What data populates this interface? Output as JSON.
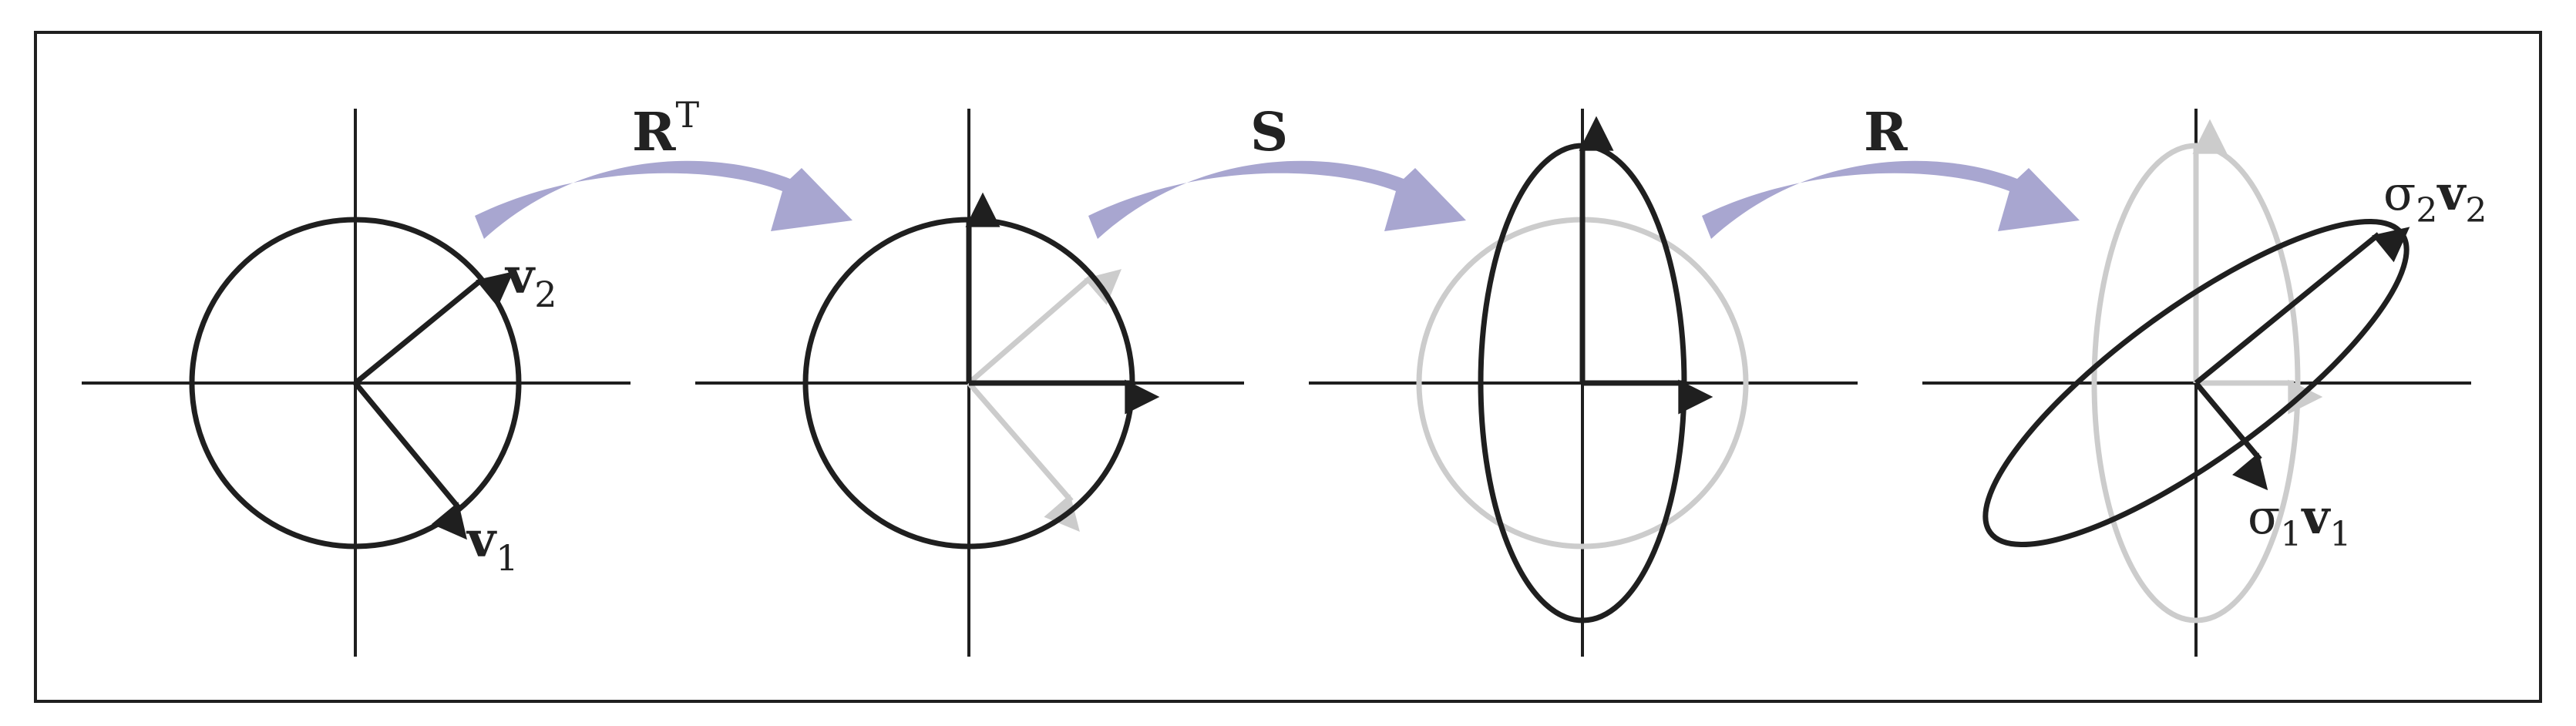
{
  "colors": {
    "ink": "#1f1f1f",
    "faded": "#c9c9c9",
    "arrow_fill": "#a8a6d0",
    "background": "#ffffff"
  },
  "labels": {
    "v1_main": "v",
    "v1_sub": "1",
    "v2_main": "v",
    "v2_sub": "2",
    "transform_rt_main": "R",
    "transform_rt_sup": "T",
    "transform_s": "S",
    "transform_r": "R",
    "sigma1_main": "σ",
    "sigma1_sub": "1",
    "sigma1_vec": "v",
    "sigma1_vec_sub": "1",
    "sigma2_main": "σ",
    "sigma2_sub": "2",
    "sigma2_vec": "v",
    "sigma2_vec_sub": "2"
  },
  "icons": {
    "transform_arrow": "curved-arrow-icon",
    "vector_head": "arrowhead-icon"
  }
}
